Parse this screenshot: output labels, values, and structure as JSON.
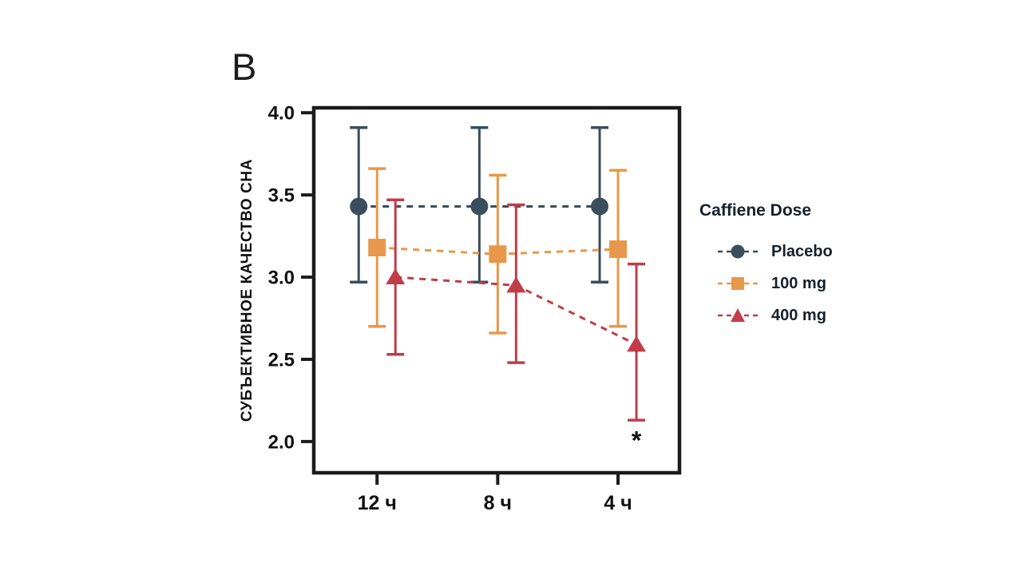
{
  "panel_label": "B",
  "colors": {
    "placebo": "#3A4E5C",
    "dose_100": "#E8984A",
    "dose_400": "#C13D49",
    "axis": "#1B1B1B",
    "text": "#111111",
    "background": "#FFFFFF"
  },
  "chart_data": {
    "type": "line",
    "title": "",
    "xlabel": "",
    "ylabel": "СУБЪЕКТИВНОЕ КАЧЕСТВО СНА",
    "categories": [
      "12 ч",
      "8 ч",
      "4 ч"
    ],
    "y_ticks": [
      4.0,
      3.5,
      3.0,
      2.5,
      2.0
    ],
    "y_tick_labels": [
      "4.0",
      "3.5",
      "3.0",
      "2.5",
      "2.0"
    ],
    "ylim": [
      1.81,
      4.03
    ],
    "grid": false,
    "legend_position": "right",
    "legend_title": "Caffiene Dose",
    "line_style": "dashed",
    "series": [
      {
        "name": "Placebo",
        "marker": "circle",
        "color": "#3A4E5C",
        "values": [
          3.43,
          3.43,
          3.43
        ],
        "ci_upper": [
          3.91,
          3.91,
          3.91
        ],
        "ci_lower": [
          2.97,
          2.97,
          2.97
        ]
      },
      {
        "name": "100 mg",
        "marker": "square",
        "color": "#E8984A",
        "values": [
          3.18,
          3.14,
          3.17
        ],
        "ci_upper": [
          3.66,
          3.62,
          3.65
        ],
        "ci_lower": [
          2.7,
          2.66,
          2.7
        ]
      },
      {
        "name": "400 mg",
        "marker": "triangle",
        "color": "#C13D49",
        "values": [
          3.0,
          2.95,
          2.59
        ],
        "ci_upper": [
          3.47,
          3.44,
          3.08
        ],
        "ci_lower": [
          2.53,
          2.48,
          2.13
        ]
      }
    ],
    "annotations": [
      {
        "text": "*",
        "category_index": 2,
        "series_index": 2,
        "y": 2.05
      }
    ]
  }
}
